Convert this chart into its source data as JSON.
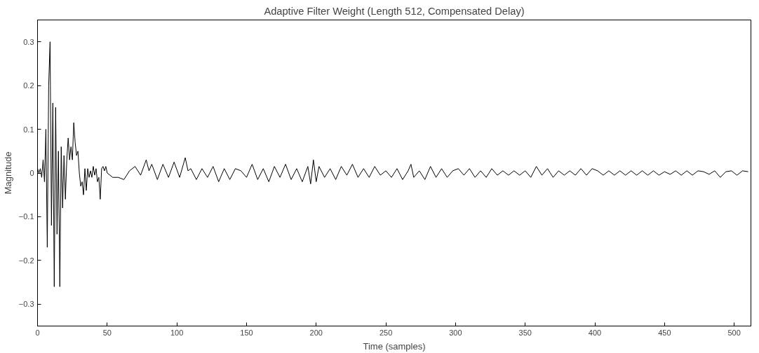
{
  "chart_data": {
    "type": "line",
    "title": "Adaptive Filter Weight (Length 512, Compensated Delay)",
    "xlabel": "Time (samples)",
    "ylabel": "Magnitude",
    "xlim": [
      0,
      512
    ],
    "ylim": [
      -0.35,
      0.35
    ],
    "xticks": [
      0,
      50,
      100,
      150,
      200,
      250,
      300,
      350,
      400,
      450,
      500
    ],
    "yticks": [
      -0.3,
      -0.2,
      -0.1,
      0,
      0.1,
      0.2,
      0.3
    ],
    "grid": false,
    "line_style": "solid",
    "marker": "none",
    "series": [
      {
        "color": "#000000",
        "x": [
          0,
          1,
          2,
          3,
          4,
          5,
          6,
          7,
          8,
          9,
          10,
          11,
          12,
          13,
          14,
          15,
          16,
          17,
          18,
          19,
          20,
          21,
          22,
          23,
          24,
          25,
          26,
          27,
          28,
          29,
          30,
          31,
          32,
          33,
          34,
          35,
          36,
          37,
          38,
          39,
          40,
          41,
          42,
          43,
          44,
          45,
          46,
          47,
          48,
          49,
          50,
          54,
          58,
          62,
          66,
          70,
          74,
          78,
          80,
          82,
          86,
          90,
          94,
          98,
          102,
          106,
          108,
          110,
          114,
          118,
          122,
          126,
          130,
          134,
          138,
          142,
          146,
          150,
          154,
          158,
          162,
          166,
          170,
          174,
          178,
          182,
          186,
          190,
          194,
          196,
          198,
          200,
          202,
          206,
          210,
          214,
          218,
          222,
          226,
          230,
          234,
          238,
          242,
          246,
          250,
          254,
          258,
          262,
          266,
          268,
          270,
          274,
          278,
          282,
          286,
          290,
          294,
          298,
          302,
          306,
          310,
          314,
          318,
          322,
          326,
          330,
          334,
          338,
          342,
          346,
          350,
          354,
          358,
          362,
          366,
          370,
          374,
          378,
          382,
          386,
          390,
          394,
          398,
          402,
          406,
          410,
          414,
          418,
          422,
          426,
          430,
          434,
          438,
          442,
          446,
          450,
          454,
          458,
          462,
          466,
          470,
          474,
          478,
          482,
          486,
          490,
          494,
          498,
          502,
          506,
          510
        ],
        "values": [
          0.01,
          0,
          0.01,
          -0.01,
          0.03,
          -0.02,
          0.1,
          -0.17,
          0.2,
          0.3,
          -0.12,
          0.16,
          -0.26,
          0.15,
          -0.14,
          0.05,
          -0.26,
          0.06,
          -0.08,
          0.04,
          -0.06,
          0.03,
          0.08,
          0.03,
          0.06,
          0.03,
          0.115,
          0.07,
          0.04,
          0.05,
          0,
          -0.03,
          -0.02,
          -0.05,
          0.01,
          -0.04,
          0.01,
          -0.01,
          0.005,
          -0.01,
          0.015,
          -0.005,
          0.01,
          -0.02,
          -0.01,
          -0.06,
          0.01,
          0.015,
          0.005,
          0.015,
          0,
          -0.01,
          -0.01,
          -0.015,
          0.005,
          0.015,
          -0.005,
          0.03,
          0.005,
          0.02,
          -0.015,
          0.02,
          -0.01,
          0.025,
          -0.01,
          0.035,
          0.005,
          0.01,
          -0.015,
          0.01,
          -0.01,
          0.015,
          -0.02,
          0.01,
          -0.015,
          0.01,
          0.005,
          -0.01,
          0.02,
          -0.015,
          0.01,
          -0.02,
          0.015,
          -0.01,
          0.02,
          -0.015,
          0.01,
          -0.02,
          0.015,
          -0.025,
          0.03,
          -0.02,
          0.015,
          -0.01,
          0.01,
          -0.015,
          0.015,
          -0.005,
          0.02,
          -0.01,
          0.01,
          -0.01,
          0.015,
          -0.005,
          0.005,
          -0.01,
          0.01,
          -0.015,
          0.005,
          0.02,
          -0.01,
          0.005,
          -0.015,
          0.015,
          -0.01,
          0.01,
          -0.01,
          0.005,
          0.01,
          -0.005,
          0.01,
          -0.01,
          0.005,
          -0.01,
          0.01,
          -0.005,
          0.005,
          -0.005,
          0.005,
          -0.005,
          0.005,
          -0.01,
          0.015,
          -0.005,
          0.01,
          -0.01,
          0.005,
          -0.005,
          0.005,
          -0.005,
          0.01,
          -0.005,
          0.01,
          0.005,
          -0.005,
          0.005,
          -0.005,
          0.005,
          -0.005,
          0.005,
          -0.005,
          0.005,
          -0.005,
          0.005,
          -0.005,
          0.003,
          -0.003,
          0.005,
          -0.005,
          0.005,
          -0.005,
          0.005,
          0.003,
          -0.003,
          0.005,
          -0.01,
          0.003,
          0.005,
          -0.005,
          0.005,
          0.003
        ]
      }
    ]
  }
}
